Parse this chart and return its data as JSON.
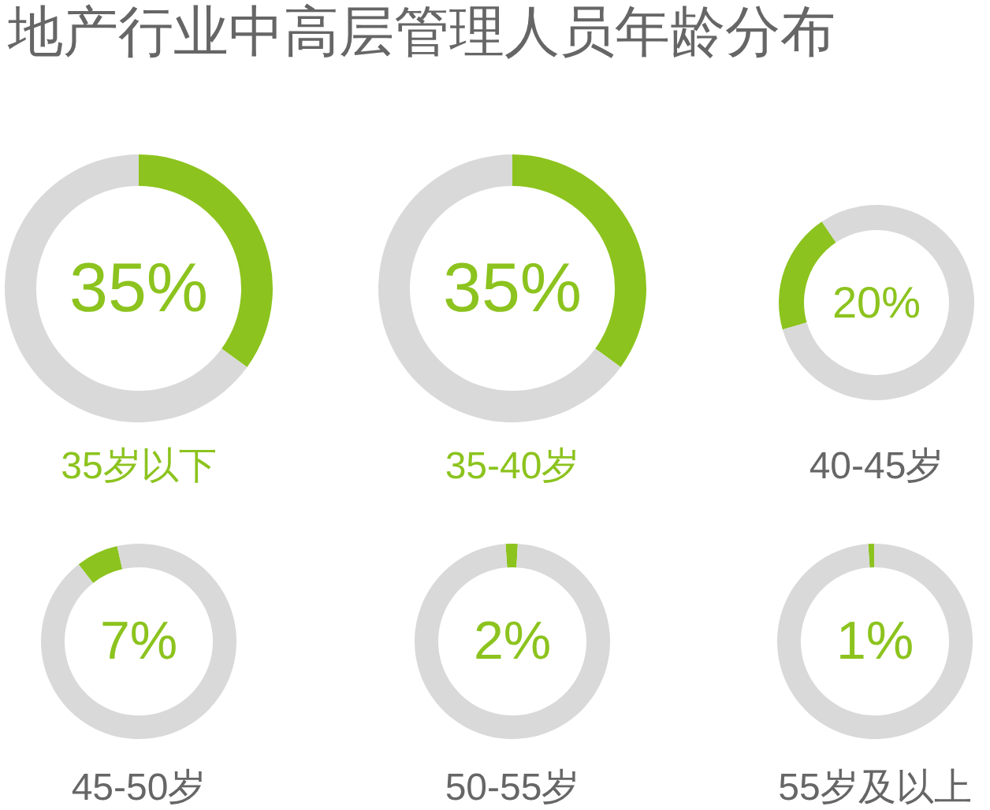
{
  "chart_data": [
    {
      "type": "donut",
      "title": "地产行业中高层管理人员年龄分布",
      "categories": [
        null,
        null
      ],
      "values": [
        35,
        65
      ],
      "colors": [
        "#8cc31e",
        "#d9d9d9"
      ],
      "annotations": [
        "35%"
      ],
      "xlabel": "35岁以下"
    },
    {
      "type": "donut",
      "categories": [
        null,
        null
      ],
      "values": [
        35,
        65
      ],
      "colors": [
        "#8cc31e",
        "#d9d9d9"
      ],
      "annotations": [
        "35%"
      ],
      "xlabel": "35-40岁"
    },
    {
      "type": "donut",
      "categories": [
        null,
        null
      ],
      "values": [
        20,
        80
      ],
      "colors": [
        "#8cc31e",
        "#d9d9d9"
      ],
      "annotations": [
        "20%"
      ],
      "xlabel": "40-45岁"
    },
    {
      "type": "donut",
      "categories": [
        null,
        null
      ],
      "values": [
        7,
        93
      ],
      "colors": [
        "#8cc31e",
        "#d9d9d9"
      ],
      "annotations": [
        "7%"
      ],
      "xlabel": "45-50岁"
    },
    {
      "type": "donut",
      "categories": [
        null,
        null
      ],
      "values": [
        2,
        98
      ],
      "colors": [
        "#8cc31e",
        "#d9d9d9"
      ],
      "annotations": [
        "2%"
      ],
      "xlabel": "50-55岁"
    },
    {
      "type": "donut",
      "categories": [
        null,
        null
      ],
      "values": [
        1,
        99
      ],
      "colors": [
        "#8cc31e",
        "#d9d9d9"
      ],
      "annotations": [
        "1%"
      ],
      "xlabel": "55岁及以上"
    }
  ]
}
